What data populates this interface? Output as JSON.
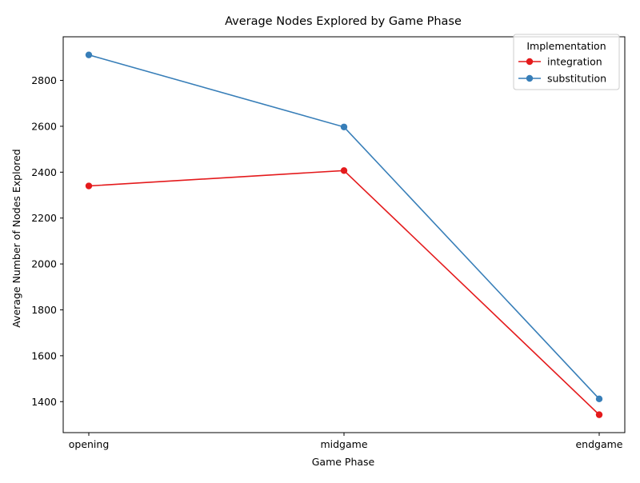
{
  "chart_data": {
    "type": "line",
    "title": "Average Nodes Explored by Game Phase",
    "xlabel": "Game Phase",
    "ylabel": "Average Number of Nodes Explored",
    "categories": [
      "opening",
      "midgame",
      "endgame"
    ],
    "ylim": [
      1265,
      2990
    ],
    "yticks": [
      1400,
      1600,
      1800,
      2000,
      2200,
      2400,
      2600,
      2800
    ],
    "grid": false,
    "legend": {
      "title": "Implementation",
      "placement": "top-right"
    },
    "series": [
      {
        "name": "integration",
        "color": "#e41a1c",
        "values": [
          2340,
          2407,
          1343
        ]
      },
      {
        "name": "substitution",
        "color": "#377eb8",
        "values": [
          2911,
          2597,
          1412
        ]
      }
    ]
  }
}
